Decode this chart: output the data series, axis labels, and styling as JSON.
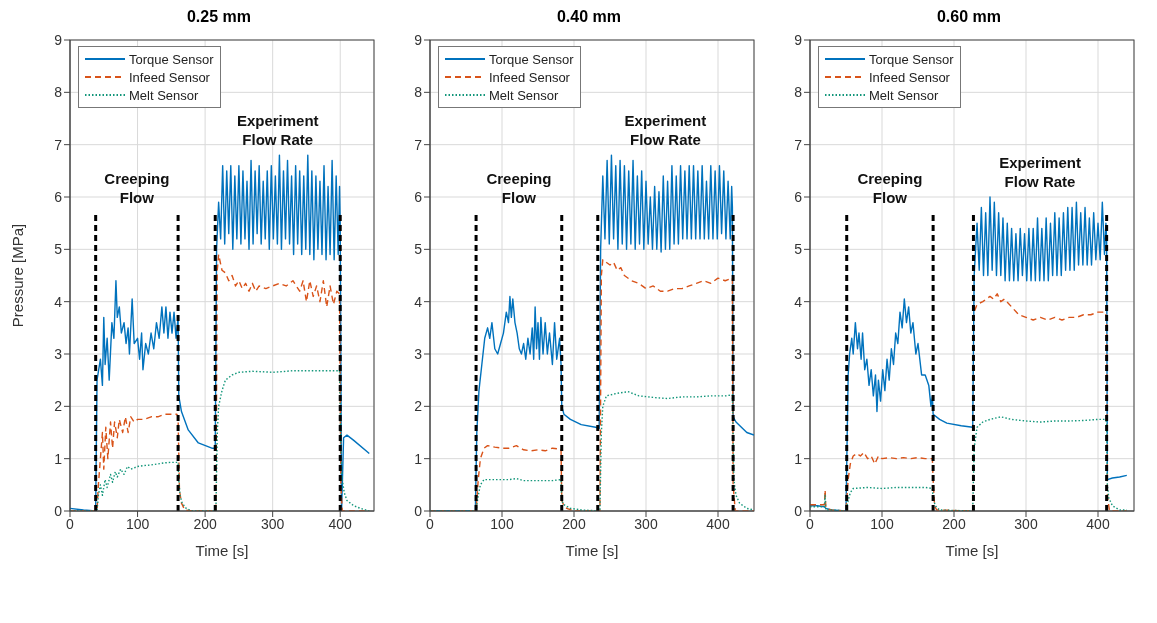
{
  "chart_data": [
    {
      "type": "line",
      "title": "0.25 mm",
      "xlabel": "Time [s]",
      "ylabel": "Pressure [MPa]",
      "xlim": [
        0,
        450
      ],
      "xticks": [
        0,
        100,
        200,
        300,
        400
      ],
      "ylim": [
        0,
        9
      ],
      "yticks": [
        0,
        1,
        2,
        3,
        4,
        5,
        6,
        7,
        8,
        9
      ],
      "grid": true,
      "legend": "top left",
      "annotations": [
        "Creeping\nFlow",
        "Experiment\nFlow Rate"
      ],
      "series": [
        {
          "name": "Torque Sensor",
          "color": "#0072bd",
          "line_style": "solid",
          "x": [
            0,
            20,
            38,
            40,
            45,
            48,
            50,
            52,
            55,
            58,
            62,
            65,
            68,
            70,
            73,
            76,
            80,
            83,
            86,
            88,
            92,
            95,
            100,
            103,
            106,
            108,
            112,
            116,
            120,
            124,
            128,
            132,
            136,
            139,
            142,
            145,
            148,
            151,
            154,
            157,
            160,
            161,
            165,
            175,
            190,
            210,
            215,
            217,
            220,
            223,
            226,
            229,
            232,
            235,
            238,
            241,
            244,
            247,
            250,
            253,
            256,
            259,
            262,
            265,
            268,
            271,
            274,
            277,
            280,
            283,
            286,
            289,
            292,
            295,
            298,
            301,
            304,
            307,
            310,
            313,
            316,
            319,
            322,
            325,
            328,
            331,
            334,
            337,
            340,
            343,
            346,
            349,
            352,
            355,
            358,
            361,
            364,
            367,
            370,
            373,
            376,
            379,
            382,
            385,
            388,
            391,
            394,
            397,
            399,
            400,
            402,
            405,
            410,
            420,
            443
          ],
          "values": [
            0.05,
            0.02,
            0,
            2.5,
            2.9,
            2.4,
            3.7,
            2.8,
            3.3,
            2.5,
            3.6,
            3.3,
            4.4,
            3.7,
            3.9,
            3.4,
            3.6,
            3.2,
            3.5,
            3.0,
            4.05,
            3.2,
            3.3,
            2.9,
            3.4,
            2.7,
            3.2,
            3.0,
            3.4,
            3.1,
            3.6,
            3.3,
            3.9,
            3.4,
            3.9,
            3.3,
            3.8,
            3.4,
            3.8,
            3.3,
            3.7,
            2.2,
            1.9,
            1.55,
            1.3,
            1.2,
            1.2,
            5.0,
            5.9,
            5.2,
            6.6,
            5.1,
            6.5,
            5.3,
            6.6,
            5.0,
            6.4,
            5.2,
            6.6,
            5.1,
            6.5,
            5.2,
            6.3,
            5.0,
            6.7,
            5.1,
            6.5,
            5.3,
            6.6,
            5.1,
            6.3,
            5.2,
            6.5,
            5.0,
            6.6,
            5.2,
            6.4,
            5.1,
            6.8,
            5.0,
            6.5,
            5.2,
            6.7,
            5.1,
            6.4,
            4.9,
            6.6,
            5.1,
            6.5,
            4.9,
            6.4,
            5.0,
            6.8,
            4.9,
            6.5,
            4.8,
            6.4,
            5.0,
            6.3,
            4.9,
            6.6,
            4.8,
            6.2,
            4.9,
            6.7,
            4.8,
            6.4,
            4.9,
            6.2,
            5.5,
            0,
            1.4,
            1.45,
            1.35,
            1.1
          ]
        },
        {
          "name": "Infeed Sensor",
          "color": "#d95319",
          "line_style": "dashed",
          "x": [
            0,
            40,
            42,
            45,
            48,
            50,
            53,
            56,
            60,
            63,
            66,
            70,
            73,
            78,
            82,
            86,
            90,
            95,
            100,
            110,
            120,
            130,
            140,
            150,
            158,
            160,
            162,
            165,
            170,
            180,
            216,
            218,
            220,
            225,
            230,
            235,
            240,
            245,
            250,
            255,
            260,
            265,
            270,
            275,
            280,
            290,
            300,
            310,
            320,
            330,
            340,
            345,
            350,
            355,
            360,
            365,
            370,
            375,
            380,
            385,
            390,
            395,
            399,
            401,
            403,
            443
          ],
          "values": [
            0,
            0,
            0.5,
            1.0,
            1.5,
            0.8,
            1.6,
            1.0,
            1.7,
            1.2,
            1.7,
            1.4,
            1.75,
            1.5,
            1.8,
            1.5,
            1.8,
            1.7,
            1.75,
            1.75,
            1.8,
            1.8,
            1.85,
            1.85,
            1.85,
            1.8,
            0.4,
            0.15,
            0.02,
            0,
            0,
            4.6,
            4.9,
            4.6,
            4.55,
            4.4,
            4.5,
            4.3,
            4.4,
            4.25,
            4.35,
            4.2,
            4.35,
            4.2,
            4.3,
            4.25,
            4.3,
            4.35,
            4.3,
            4.4,
            4.2,
            4.4,
            4.0,
            4.4,
            4.1,
            4.3,
            4.0,
            4.4,
            3.9,
            4.3,
            3.95,
            4.2,
            4.15,
            0.5,
            0,
            0
          ]
        },
        {
          "name": "Melt Sensor",
          "color": "#12967a",
          "line_style": "dotted",
          "x": [
            0,
            40,
            42,
            45,
            48,
            52,
            55,
            60,
            63,
            67,
            70,
            75,
            80,
            85,
            90,
            100,
            110,
            120,
            130,
            140,
            150,
            160,
            161,
            163,
            166,
            172,
            180,
            216,
            218,
            220,
            225,
            230,
            240,
            250,
            270,
            300,
            330,
            360,
            399,
            401,
            403,
            406,
            410,
            420,
            430,
            443
          ],
          "values": [
            0,
            0,
            0.3,
            0.5,
            0.3,
            0.6,
            0.45,
            0.7,
            0.55,
            0.75,
            0.65,
            0.8,
            0.7,
            0.85,
            0.8,
            0.85,
            0.87,
            0.88,
            0.9,
            0.92,
            0.93,
            0.93,
            0.6,
            0.3,
            0.15,
            0.05,
            0,
            0,
            1.5,
            2.0,
            2.3,
            2.5,
            2.6,
            2.65,
            2.67,
            2.65,
            2.68,
            2.68,
            2.68,
            1.2,
            0.6,
            0.35,
            0.2,
            0.1,
            0.05,
            0
          ]
        },
        {
          "color": "#000000",
          "line_style": "dashed",
          "x": [
            38,
            38
          ],
          "values": [
            0,
            5.7
          ]
        },
        {
          "color": "#000000",
          "line_style": "dashed",
          "x": [
            160,
            160
          ],
          "values": [
            0,
            5.7
          ]
        },
        {
          "color": "#000000",
          "line_style": "dashed",
          "x": [
            215,
            215
          ],
          "values": [
            0,
            5.7
          ]
        },
        {
          "color": "#000000",
          "line_style": "dashed",
          "x": [
            400,
            400
          ],
          "values": [
            0,
            5.7
          ]
        }
      ]
    },
    {
      "type": "line",
      "title": "0.40 mm",
      "xlabel": "Time [s]",
      "xlim": [
        0,
        450
      ],
      "xticks": [
        0,
        100,
        200,
        300,
        400
      ],
      "ylim": [
        0,
        9
      ],
      "yticks": [
        0,
        1,
        2,
        3,
        4,
        5,
        6,
        7,
        8,
        9
      ],
      "grid": true,
      "legend": "top left",
      "annotations": [
        "Creeping\nFlow",
        "Experiment\nFlow Rate"
      ],
      "series": [
        {
          "name": "Torque Sensor",
          "color": "#0072bd",
          "line_style": "solid",
          "x": [
            0,
            63,
            65,
            68,
            72,
            76,
            80,
            83,
            86,
            90,
            94,
            98,
            102,
            106,
            109,
            111,
            113,
            115,
            118,
            121,
            124,
            127,
            130,
            133,
            136,
            139,
            142,
            144,
            146,
            148,
            150,
            152,
            154,
            157,
            160,
            163,
            166,
            170,
            173,
            176,
            180,
            182,
            183,
            186,
            195,
            210,
            230,
            235,
            237,
            240,
            243,
            246,
            249,
            252,
            255,
            258,
            261,
            264,
            267,
            270,
            273,
            276,
            279,
            282,
            285,
            288,
            291,
            294,
            297,
            300,
            303,
            306,
            309,
            312,
            315,
            318,
            321,
            324,
            327,
            330,
            333,
            336,
            339,
            342,
            345,
            348,
            351,
            354,
            357,
            360,
            363,
            366,
            369,
            372,
            375,
            378,
            381,
            384,
            387,
            390,
            393,
            396,
            399,
            402,
            405,
            408,
            411,
            414,
            417,
            419,
            420,
            421,
            425,
            440,
            450
          ],
          "values": [
            0,
            0,
            1.5,
            2.3,
            2.8,
            3.3,
            3.5,
            3.3,
            3.6,
            3.1,
            3.0,
            3.2,
            3.4,
            3.8,
            3.6,
            4.1,
            3.7,
            4.05,
            3.6,
            3.4,
            3.1,
            3.0,
            3.2,
            2.9,
            3.3,
            3.0,
            3.5,
            2.9,
            3.9,
            3.1,
            3.6,
            2.9,
            3.7,
            3.0,
            3.6,
            3.0,
            3.4,
            2.8,
            3.6,
            2.9,
            3.3,
            2.8,
            2.0,
            1.85,
            1.75,
            1.65,
            1.6,
            1.58,
            5.0,
            6.4,
            5.2,
            6.7,
            5.1,
            6.8,
            5.2,
            6.6,
            5.0,
            6.7,
            5.1,
            6.6,
            5.0,
            6.5,
            5.1,
            6.7,
            5.0,
            6.4,
            5.1,
            6.5,
            5.0,
            6.3,
            5.1,
            6.0,
            5.0,
            6.2,
            5.0,
            6.1,
            4.95,
            6.4,
            5.0,
            6.3,
            5.0,
            6.6,
            5.1,
            6.4,
            5.1,
            6.6,
            5.2,
            6.5,
            5.2,
            6.6,
            5.2,
            6.6,
            5.2,
            6.5,
            5.2,
            6.6,
            5.2,
            6.3,
            5.2,
            6.6,
            5.2,
            6.5,
            5.2,
            6.6,
            5.3,
            6.5,
            5.2,
            6.3,
            5.2,
            6.2,
            5.8,
            1.8,
            1.7,
            1.5,
            1.45
          ]
        },
        {
          "name": "Infeed Sensor",
          "color": "#d95319",
          "line_style": "dashed",
          "x": [
            0,
            64,
            67,
            70,
            75,
            80,
            90,
            100,
            110,
            120,
            130,
            140,
            150,
            160,
            170,
            182,
            183,
            186,
            190,
            200,
            236,
            238,
            240,
            250,
            255,
            260,
            265,
            270,
            280,
            290,
            300,
            310,
            320,
            330,
            340,
            350,
            360,
            370,
            380,
            390,
            400,
            410,
            420,
            421,
            424,
            450
          ],
          "values": [
            0,
            0,
            0.6,
            1.0,
            1.2,
            1.25,
            1.22,
            1.2,
            1.2,
            1.25,
            1.17,
            1.15,
            1.17,
            1.15,
            1.2,
            1.18,
            0.2,
            0.1,
            0.05,
            0,
            0,
            4.5,
            4.8,
            4.7,
            4.75,
            4.6,
            4.65,
            4.5,
            4.4,
            4.35,
            4.25,
            4.3,
            4.2,
            4.2,
            4.25,
            4.25,
            4.3,
            4.35,
            4.4,
            4.35,
            4.45,
            4.4,
            4.45,
            0.5,
            0,
            0
          ]
        },
        {
          "name": "Melt Sensor",
          "color": "#12967a",
          "line_style": "dotted",
          "x": [
            0,
            64,
            67,
            70,
            75,
            90,
            100,
            110,
            120,
            130,
            150,
            170,
            182,
            183,
            186,
            195,
            210,
            236,
            238,
            240,
            245,
            260,
            275,
            290,
            310,
            330,
            350,
            370,
            390,
            410,
            420,
            421,
            422,
            425,
            430,
            440,
            450
          ],
          "values": [
            0,
            0,
            0.3,
            0.5,
            0.6,
            0.6,
            0.6,
            0.6,
            0.62,
            0.58,
            0.58,
            0.58,
            0.6,
            0.2,
            0.12,
            0.05,
            0.02,
            0,
            1.5,
            2.0,
            2.2,
            2.25,
            2.28,
            2.2,
            2.17,
            2.15,
            2.18,
            2.18,
            2.2,
            2.2,
            2.22,
            1.5,
            0.6,
            0.3,
            0.15,
            0.05,
            0.02
          ]
        },
        {
          "color": "#000000",
          "line_style": "dashed",
          "x": [
            64,
            64
          ],
          "values": [
            0,
            5.7
          ]
        },
        {
          "color": "#000000",
          "line_style": "dashed",
          "x": [
            183,
            183
          ],
          "values": [
            0,
            5.7
          ]
        },
        {
          "color": "#000000",
          "line_style": "dashed",
          "x": [
            233,
            233
          ],
          "values": [
            0,
            5.7
          ]
        },
        {
          "color": "#000000",
          "line_style": "dashed",
          "x": [
            421,
            421
          ],
          "values": [
            0,
            5.7
          ]
        }
      ]
    },
    {
      "type": "line",
      "title": "0.60 mm",
      "xlabel": "Time [s]",
      "xlim": [
        0,
        450
      ],
      "xticks": [
        0,
        100,
        200,
        300,
        400
      ],
      "ylim": [
        0,
        9
      ],
      "yticks": [
        0,
        1,
        2,
        3,
        4,
        5,
        6,
        7,
        8,
        9
      ],
      "grid": true,
      "legend": "top left",
      "annotations": [
        "Creeping\nFlow",
        "Experiment\nFlow Rate"
      ],
      "series": [
        {
          "name": "Torque Sensor",
          "color": "#0072bd",
          "line_style": "solid",
          "x": [
            0,
            10,
            20,
            22,
            30,
            50,
            53,
            55,
            58,
            60,
            63,
            66,
            68,
            71,
            73,
            76,
            79,
            82,
            85,
            88,
            91,
            93,
            95,
            98,
            101,
            104,
            107,
            110,
            113,
            116,
            119,
            122,
            125,
            128,
            131,
            134,
            137,
            140,
            143,
            147,
            150,
            155,
            160,
            165,
            168,
            170,
            171,
            180,
            190,
            210,
            226,
            228,
            232,
            235,
            238,
            241,
            244,
            247,
            250,
            253,
            256,
            259,
            262,
            265,
            268,
            271,
            274,
            277,
            280,
            283,
            286,
            289,
            292,
            295,
            298,
            301,
            304,
            307,
            310,
            313,
            316,
            319,
            322,
            325,
            328,
            331,
            334,
            337,
            340,
            343,
            346,
            349,
            352,
            355,
            358,
            361,
            364,
            367,
            370,
            373,
            376,
            379,
            382,
            385,
            388,
            391,
            394,
            397,
            400,
            403,
            406,
            409,
            411,
            412,
            413,
            420,
            430,
            440
          ],
          "values": [
            0.1,
            0.1,
            0.08,
            0.05,
            0.02,
            0,
            2.6,
            3.0,
            3.3,
            3.0,
            3.6,
            3.1,
            3.4,
            2.9,
            3.4,
            2.7,
            2.9,
            2.4,
            2.7,
            2.2,
            2.6,
            1.9,
            2.5,
            2.1,
            2.7,
            2.3,
            2.9,
            2.5,
            3.1,
            2.8,
            3.4,
            3.2,
            3.8,
            3.5,
            4.05,
            3.6,
            3.9,
            3.4,
            3.6,
            3.0,
            3.2,
            2.6,
            2.6,
            2.4,
            2.0,
            2.2,
            1.85,
            1.75,
            1.68,
            1.63,
            1.6,
            4.5,
            5.5,
            4.6,
            5.8,
            4.5,
            5.7,
            4.5,
            6.0,
            4.6,
            5.9,
            4.5,
            5.7,
            4.5,
            5.6,
            4.4,
            5.5,
            4.4,
            5.4,
            4.4,
            5.3,
            4.4,
            5.4,
            4.5,
            5.3,
            4.4,
            5.4,
            4.4,
            5.4,
            4.4,
            5.6,
            4.4,
            5.4,
            4.4,
            5.6,
            4.4,
            5.5,
            4.5,
            5.7,
            4.5,
            5.6,
            4.5,
            5.7,
            4.6,
            5.8,
            4.6,
            5.8,
            4.6,
            5.9,
            4.7,
            5.7,
            4.7,
            5.8,
            4.7,
            5.6,
            4.7,
            5.7,
            4.8,
            5.5,
            4.8,
            5.9,
            4.9,
            5.5,
            5.2,
            0.6,
            0.63,
            0.65,
            0.68
          ]
        },
        {
          "name": "Infeed Sensor",
          "color": "#d95319",
          "line_style": "dashed",
          "x": [
            0,
            20,
            21,
            22,
            30,
            50,
            53,
            56,
            60,
            65,
            70,
            75,
            80,
            85,
            90,
            95,
            100,
            110,
            120,
            130,
            140,
            150,
            160,
            170,
            171,
            173,
            176,
            226,
            228,
            232,
            240,
            250,
            255,
            260,
            265,
            270,
            280,
            290,
            300,
            310,
            320,
            330,
            340,
            350,
            360,
            370,
            380,
            390,
            400,
            410,
            412,
            413,
            416,
            440
          ],
          "values": [
            0.12,
            0.12,
            0.4,
            0.05,
            0.02,
            0,
            0.6,
            0.9,
            1.05,
            1.1,
            1.05,
            1.12,
            1.0,
            1.05,
            0.9,
            1.05,
            1.0,
            1.02,
            1.0,
            1.02,
            1.0,
            1.02,
            1.0,
            1.0,
            0.6,
            0.1,
            0.02,
            0,
            3.8,
            3.95,
            4.0,
            4.1,
            4.05,
            4.15,
            4.0,
            4.05,
            3.9,
            3.75,
            3.7,
            3.65,
            3.7,
            3.65,
            3.7,
            3.65,
            3.7,
            3.7,
            3.75,
            3.75,
            3.8,
            3.8,
            3.7,
            0.3,
            0,
            0
          ]
        },
        {
          "name": "Melt Sensor",
          "color": "#12967a",
          "line_style": "dotted",
          "x": [
            0,
            20,
            21,
            22,
            30,
            50,
            53,
            56,
            60,
            80,
            100,
            120,
            140,
            160,
            170,
            171,
            174,
            180,
            226,
            228,
            232,
            240,
            250,
            265,
            280,
            300,
            320,
            340,
            360,
            380,
            400,
            410,
            412,
            413,
            415,
            420,
            430,
            440
          ],
          "values": [
            0.08,
            0.08,
            0.3,
            0.02,
            0.02,
            0,
            0.2,
            0.35,
            0.43,
            0.45,
            0.43,
            0.45,
            0.45,
            0.45,
            0.43,
            0.25,
            0.1,
            0.02,
            0,
            1.2,
            1.6,
            1.7,
            1.75,
            1.8,
            1.75,
            1.72,
            1.7,
            1.72,
            1.72,
            1.73,
            1.75,
            1.75,
            1.7,
            0.5,
            0.25,
            0.1,
            0.02,
            0.02
          ]
        },
        {
          "color": "#000000",
          "line_style": "dashed",
          "x": [
            51,
            51
          ],
          "values": [
            0,
            5.7
          ]
        },
        {
          "color": "#000000",
          "line_style": "dashed",
          "x": [
            171,
            171
          ],
          "values": [
            0,
            5.7
          ]
        },
        {
          "color": "#000000",
          "line_style": "dashed",
          "x": [
            227,
            227
          ],
          "values": [
            0,
            5.7
          ]
        },
        {
          "color": "#000000",
          "line_style": "dashed",
          "x": [
            412,
            412
          ],
          "values": [
            0,
            5.7
          ]
        }
      ]
    }
  ]
}
